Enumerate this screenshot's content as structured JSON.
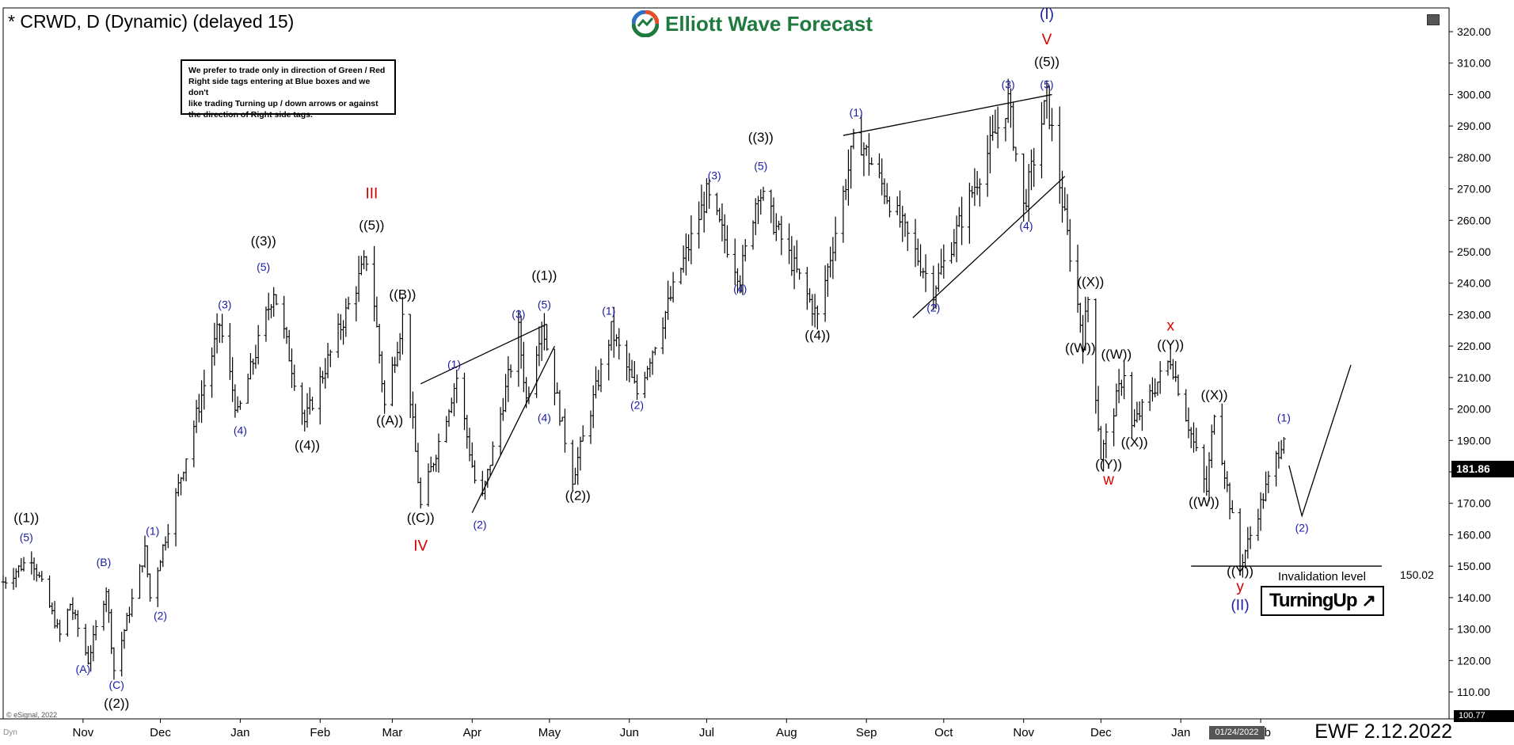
{
  "header": {
    "title": "* CRWD, D (Dynamic) (delayed 15)",
    "logo_text": "Elliott Wave Forecast"
  },
  "disclaimer": {
    "lines": [
      "We prefer to trade only in direction of Green / Red",
      "Right side tags entering at Blue boxes and we don't",
      "like trading Turning up / down arrows or against",
      "the direction of Right side tags."
    ]
  },
  "footer": {
    "brand": "EWF 2.12.2022",
    "source": "© eSignal, 2022",
    "dyn": "Dyn"
  },
  "badges": {
    "last_price": "181.86",
    "bottom_price": "100.77",
    "cursor_date": "01/24/2022",
    "turning_up": "TurningUp",
    "turning_up_arrow": "↗"
  },
  "invalidation": {
    "label": "Invalidation level",
    "value": "150.02"
  },
  "colors": {
    "wave_blue": "#1a1aa8",
    "wave_black": "#000000",
    "wave_red": "#d40000",
    "logo_green": "#1f7a3f"
  },
  "chart_data": {
    "type": "ohlc",
    "timeframe": "D",
    "ylim": [
      100,
      330
    ],
    "yticks": [
      "110.00",
      "120.00",
      "130.00",
      "140.00",
      "150.00",
      "160.00",
      "170.00",
      "180.00",
      "190.00",
      "200.00",
      "210.00",
      "220.00",
      "230.00",
      "240.00",
      "250.00",
      "260.00",
      "270.00",
      "280.00",
      "290.00",
      "300.00",
      "310.00",
      "320.00"
    ],
    "xticks": [
      {
        "label": "Nov",
        "date": "2020-11-01"
      },
      {
        "label": "Dec",
        "date": "2020-12-01"
      },
      {
        "label": "Jan",
        "date": "2021-01-01"
      },
      {
        "label": "Feb",
        "date": "2021-02-01"
      },
      {
        "label": "Mar",
        "date": "2021-03-01"
      },
      {
        "label": "Apr",
        "date": "2021-04-01"
      },
      {
        "label": "May",
        "date": "2021-05-01"
      },
      {
        "label": "Jun",
        "date": "2021-06-01"
      },
      {
        "label": "Jul",
        "date": "2021-07-01"
      },
      {
        "label": "Aug",
        "date": "2021-08-01"
      },
      {
        "label": "Sep",
        "date": "2021-09-01"
      },
      {
        "label": "Oct",
        "date": "2021-10-01"
      },
      {
        "label": "Nov",
        "date": "2021-11-01"
      },
      {
        "label": "Dec",
        "date": "2021-12-01"
      },
      {
        "label": "Jan",
        "date": "2022-01-01"
      },
      {
        "label": "Feb",
        "date": "2022-02-01"
      }
    ],
    "price_path": [
      {
        "date": "2020-10-01",
        "price": 145
      },
      {
        "date": "2020-10-12",
        "price": 153
      },
      {
        "date": "2020-10-23",
        "price": 128
      },
      {
        "date": "2020-10-27",
        "price": 138
      },
      {
        "date": "2020-11-03",
        "price": 120
      },
      {
        "date": "2020-11-10",
        "price": 143
      },
      {
        "date": "2020-11-13",
        "price": 117
      },
      {
        "date": "2020-11-25",
        "price": 155
      },
      {
        "date": "2020-11-27",
        "price": 140
      },
      {
        "date": "2020-12-24",
        "price": 227
      },
      {
        "date": "2020-12-31",
        "price": 198
      },
      {
        "date": "2021-01-14",
        "price": 238
      },
      {
        "date": "2021-01-26",
        "price": 196
      },
      {
        "date": "2021-02-20",
        "price": 250
      },
      {
        "date": "2021-02-26",
        "price": 201
      },
      {
        "date": "2021-03-05",
        "price": 229
      },
      {
        "date": "2021-03-12",
        "price": 169
      },
      {
        "date": "2021-03-26",
        "price": 210
      },
      {
        "date": "2021-04-04",
        "price": 168
      },
      {
        "date": "2021-04-19",
        "price": 225
      },
      {
        "date": "2021-04-22",
        "price": 203
      },
      {
        "date": "2021-04-28",
        "price": 228
      },
      {
        "date": "2021-05-10",
        "price": 178
      },
      {
        "date": "2021-05-25",
        "price": 225
      },
      {
        "date": "2021-06-04",
        "price": 205
      },
      {
        "date": "2021-07-01",
        "price": 268
      },
      {
        "date": "2021-07-14",
        "price": 242
      },
      {
        "date": "2021-07-21",
        "price": 270
      },
      {
        "date": "2021-08-13",
        "price": 229
      },
      {
        "date": "2021-08-28",
        "price": 288
      },
      {
        "date": "2021-09-27",
        "price": 238
      },
      {
        "date": "2021-10-26",
        "price": 298
      },
      {
        "date": "2021-11-01",
        "price": 264
      },
      {
        "date": "2021-11-10",
        "price": 299
      },
      {
        "date": "2021-11-24",
        "price": 222
      },
      {
        "date": "2021-11-26",
        "price": 235
      },
      {
        "date": "2021-12-01",
        "price": 185
      },
      {
        "date": "2021-12-10",
        "price": 212
      },
      {
        "date": "2021-12-13",
        "price": 194
      },
      {
        "date": "2021-12-28",
        "price": 216
      },
      {
        "date": "2022-01-11",
        "price": 174
      },
      {
        "date": "2022-01-14",
        "price": 200
      },
      {
        "date": "2022-01-24",
        "price": 150
      },
      {
        "date": "2022-02-10",
        "price": 192
      },
      {
        "date": "2022-02-11",
        "price": 181.86
      }
    ],
    "projection": [
      {
        "date": "2022-02-12",
        "price": 182
      },
      {
        "date": "2022-02-17",
        "price": 166
      },
      {
        "date": "2022-03-08",
        "price": 214
      }
    ],
    "trendlines": [
      {
        "from": {
          "date": "2021-03-12",
          "price": 208
        },
        "to": {
          "date": "2021-04-30",
          "price": 227
        }
      },
      {
        "from": {
          "date": "2021-04-01",
          "price": 167
        },
        "to": {
          "date": "2021-05-03",
          "price": 220
        }
      },
      {
        "from": {
          "date": "2021-08-23",
          "price": 287
        },
        "to": {
          "date": "2021-11-12",
          "price": 300
        }
      },
      {
        "from": {
          "date": "2021-09-19",
          "price": 229
        },
        "to": {
          "date": "2021-11-17",
          "price": 274
        }
      }
    ],
    "invalidation_line": {
      "from": "2022-01-05",
      "to": "2022-03-20",
      "price": 150.02
    },
    "labels": [
      {
        "text": "((1))",
        "date": "2020-10-10",
        "price": 164,
        "color": "black"
      },
      {
        "text": "(5)",
        "date": "2020-10-10",
        "price": 158,
        "color": "blue"
      },
      {
        "text": "(A)",
        "date": "2020-11-01",
        "price": 116,
        "color": "blue"
      },
      {
        "text": "(B)",
        "date": "2020-11-09",
        "price": 150,
        "color": "blue"
      },
      {
        "text": "(C)",
        "date": "2020-11-14",
        "price": 111,
        "color": "blue"
      },
      {
        "text": "((2))",
        "date": "2020-11-14",
        "price": 105,
        "color": "black"
      },
      {
        "text": "(1)",
        "date": "2020-11-28",
        "price": 160,
        "color": "blue"
      },
      {
        "text": "(2)",
        "date": "2020-12-01",
        "price": 133,
        "color": "blue"
      },
      {
        "text": "(3)",
        "date": "2020-12-26",
        "price": 232,
        "color": "blue"
      },
      {
        "text": "(4)",
        "date": "2021-01-01",
        "price": 192,
        "color": "blue"
      },
      {
        "text": "((3))",
        "date": "2021-01-10",
        "price": 252,
        "color": "black"
      },
      {
        "text": "(5)",
        "date": "2021-01-10",
        "price": 244,
        "color": "blue"
      },
      {
        "text": "((4))",
        "date": "2021-01-27",
        "price": 187,
        "color": "black"
      },
      {
        "text": "III",
        "date": "2021-02-21",
        "price": 267,
        "color": "red"
      },
      {
        "text": "((5))",
        "date": "2021-02-21",
        "price": 257,
        "color": "black"
      },
      {
        "text": "((B))",
        "date": "2021-03-05",
        "price": 235,
        "color": "black"
      },
      {
        "text": "((A))",
        "date": "2021-02-28",
        "price": 195,
        "color": "black"
      },
      {
        "text": "((C))",
        "date": "2021-03-12",
        "price": 164,
        "color": "black"
      },
      {
        "text": "IV",
        "date": "2021-03-12",
        "price": 155,
        "color": "red"
      },
      {
        "text": "(1)",
        "date": "2021-03-25",
        "price": 213,
        "color": "blue"
      },
      {
        "text": "(2)",
        "date": "2021-04-04",
        "price": 162,
        "color": "blue"
      },
      {
        "text": "(3)",
        "date": "2021-04-19",
        "price": 229,
        "color": "blue"
      },
      {
        "text": "((1))",
        "date": "2021-04-29",
        "price": 241,
        "color": "black"
      },
      {
        "text": "(5)",
        "date": "2021-04-29",
        "price": 232,
        "color": "blue"
      },
      {
        "text": "(4)",
        "date": "2021-04-29",
        "price": 196,
        "color": "blue"
      },
      {
        "text": "((2))",
        "date": "2021-05-12",
        "price": 171,
        "color": "black"
      },
      {
        "text": "(1)",
        "date": "2021-05-24",
        "price": 230,
        "color": "blue"
      },
      {
        "text": "(2)",
        "date": "2021-06-04",
        "price": 200,
        "color": "blue"
      },
      {
        "text": "(3)",
        "date": "2021-07-04",
        "price": 273,
        "color": "blue"
      },
      {
        "text": "((3))",
        "date": "2021-07-22",
        "price": 285,
        "color": "black"
      },
      {
        "text": "(5)",
        "date": "2021-07-22",
        "price": 276,
        "color": "blue"
      },
      {
        "text": "(4)",
        "date": "2021-07-14",
        "price": 237,
        "color": "blue"
      },
      {
        "text": "((4))",
        "date": "2021-08-13",
        "price": 222,
        "color": "black"
      },
      {
        "text": "(1)",
        "date": "2021-08-28",
        "price": 293,
        "color": "blue"
      },
      {
        "text": "(2)",
        "date": "2021-09-27",
        "price": 231,
        "color": "blue"
      },
      {
        "text": "(3)",
        "date": "2021-10-26",
        "price": 302,
        "color": "blue"
      },
      {
        "text": "(4)",
        "date": "2021-11-02",
        "price": 257,
        "color": "blue"
      },
      {
        "text": "(I)",
        "date": "2021-11-10",
        "price": 324,
        "color": "blue"
      },
      {
        "text": "V",
        "date": "2021-11-10",
        "price": 316,
        "color": "red"
      },
      {
        "text": "((5))",
        "date": "2021-11-10",
        "price": 309,
        "color": "black"
      },
      {
        "text": "(5)",
        "date": "2021-11-10",
        "price": 302,
        "color": "blue"
      },
      {
        "text": "((X))",
        "date": "2021-11-27",
        "price": 239,
        "color": "black"
      },
      {
        "text": "((W))",
        "date": "2021-11-23",
        "price": 218,
        "color": "black"
      },
      {
        "text": "((W))",
        "date": "2021-12-07",
        "price": 216,
        "color": "black"
      },
      {
        "text": "((X))",
        "date": "2021-12-14",
        "price": 188,
        "color": "black"
      },
      {
        "text": "((Y))",
        "date": "2021-12-04",
        "price": 181,
        "color": "black"
      },
      {
        "text": "w",
        "date": "2021-12-04",
        "price": 176,
        "color": "red"
      },
      {
        "text": "x",
        "date": "2021-12-28",
        "price": 225,
        "color": "red"
      },
      {
        "text": "((Y))",
        "date": "2021-12-28",
        "price": 219,
        "color": "black"
      },
      {
        "text": "((X))",
        "date": "2022-01-14",
        "price": 203,
        "color": "black"
      },
      {
        "text": "((W))",
        "date": "2022-01-10",
        "price": 169,
        "color": "black"
      },
      {
        "text": "((Y))",
        "date": "2022-01-24",
        "price": 147,
        "color": "black"
      },
      {
        "text": "y",
        "date": "2022-01-24",
        "price": 142,
        "color": "red"
      },
      {
        "text": "(II)",
        "date": "2022-01-24",
        "price": 136,
        "color": "blue"
      },
      {
        "text": "(1)",
        "date": "2022-02-10",
        "price": 196,
        "color": "blue"
      },
      {
        "text": "(2)",
        "date": "2022-02-17",
        "price": 161,
        "color": "blue"
      }
    ]
  }
}
